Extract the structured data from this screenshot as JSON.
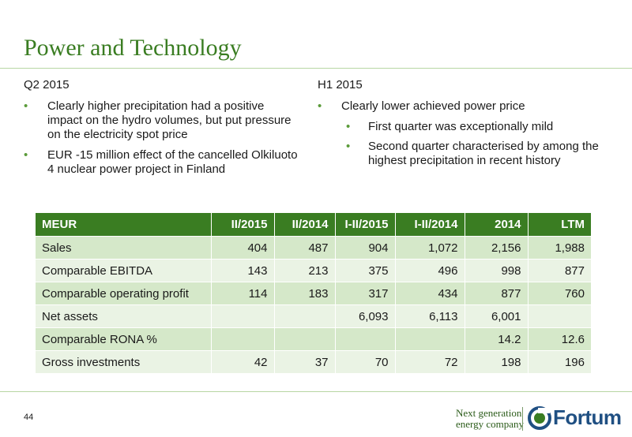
{
  "page": {
    "title": "Power and Technology",
    "page_number": "44"
  },
  "left_column": {
    "heading": "Q2 2015",
    "bullets": [
      "Clearly higher precipitation had a positive impact on the hydro volumes, but put pressure on the electricity spot price",
      "EUR -15 million effect of the cancelled Olkiluoto 4 nuclear power project in Finland"
    ]
  },
  "right_column": {
    "heading": "H1 2015",
    "bullet": "Clearly lower achieved power price",
    "sub_bullets": [
      "First quarter was exceptionally mild",
      "Second quarter characterised by among the highest precipitation in recent history"
    ]
  },
  "table": {
    "headers": [
      "MEUR",
      "II/2015",
      "II/2014",
      "I-II/2015",
      "I-II/2014",
      "2014",
      "LTM"
    ],
    "rows": [
      [
        "Sales",
        "404",
        "487",
        "904",
        "1,072",
        "2,156",
        "1,988"
      ],
      [
        "Comparable EBITDA",
        "143",
        "213",
        "375",
        "496",
        "998",
        "877"
      ],
      [
        "Comparable operating profit",
        "114",
        "183",
        "317",
        "434",
        "877",
        "760"
      ],
      [
        "Net assets",
        "",
        "",
        "6,093",
        "6,113",
        "6,001",
        ""
      ],
      [
        "Comparable RONA %",
        "",
        "",
        "",
        "",
        "14.2",
        "12.6"
      ],
      [
        "Gross investments",
        "42",
        "37",
        "70",
        "72",
        "198",
        "196"
      ]
    ]
  },
  "footer": {
    "tagline_line1": "Next generation",
    "tagline_line2": "energy company",
    "logo_text": "Fortum",
    "logo_color": "#1f4f82",
    "accent_color": "#3a7d22",
    "logo_icon": "fortum-logo-icon"
  }
}
